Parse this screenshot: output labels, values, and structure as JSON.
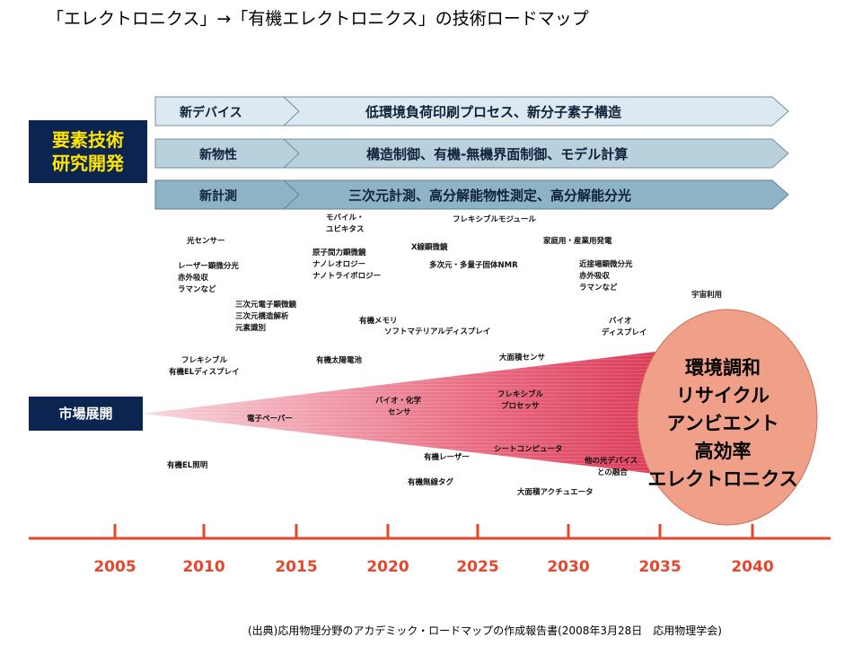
{
  "title": "「エレクトロニクス」→「有機エレクトロニクス」の技術ロードマップ",
  "source": "(出典)応用物理分野のアカデミック・ロードマップの作成報告書(2008年3月28日　応用物理学会)",
  "rnd_label": [
    "要素技術",
    "研究開発"
  ],
  "market_label": "市場展開",
  "arrows": [
    {
      "left": "新デバイス",
      "right": "低環境負荷印刷プロセス、新分子素子構造",
      "fill": "#dde9f0"
    },
    {
      "left": "新物性",
      "right": "構造制御、有機-無機界面制御、モデル計算",
      "fill": "#b9d0dd"
    },
    {
      "left": "新計測",
      "right": "三次元計測、高分解能物性測定、高分解能分光",
      "fill": "#8fb3c6"
    }
  ],
  "research_items": [
    {
      "lines": [
        "光センサー"
      ]
    },
    {
      "lines": [
        "レーザー顕微分光",
        "赤外吸収",
        "ラマンなど"
      ]
    },
    {
      "lines": [
        "三次元電子顕微鏡",
        "三次元構造解析",
        "元素識別"
      ]
    },
    {
      "lines": [
        "モバイル・",
        "ユビキタス"
      ]
    },
    {
      "lines": [
        "原子間力顕微鏡",
        "ナノレオロジー",
        "ナノトライボロジー"
      ]
    },
    {
      "lines": [
        "フレキシブルモジュール"
      ]
    },
    {
      "lines": [
        "X線顕微鏡"
      ]
    },
    {
      "lines": [
        "多次元・多量子固体NMR"
      ]
    },
    {
      "lines": [
        "家庭用・産業用発電"
      ]
    },
    {
      "lines": [
        "近接場顕微分光",
        "赤外吸収",
        "ラマンなど"
      ]
    },
    {
      "lines": [
        "宇宙利用"
      ]
    },
    {
      "lines": [
        "有機メモリ"
      ]
    },
    {
      "lines": [
        "ソフトマテリアルディスプレイ"
      ]
    },
    {
      "lines": [
        "バイオ",
        "ディスプレイ"
      ]
    }
  ],
  "market_items": [
    {
      "lines": [
        "フレキシブル",
        "有機ELディスプレイ"
      ]
    },
    {
      "lines": [
        "有機太陽電池"
      ]
    },
    {
      "lines": [
        "大面積センサ"
      ]
    },
    {
      "lines": [
        "電子ペーパー"
      ]
    },
    {
      "lines": [
        "バイオ・化学",
        "センサ"
      ]
    },
    {
      "lines": [
        "フレキシブル",
        "プロセッサ"
      ]
    },
    {
      "lines": [
        "有機EL照明"
      ]
    },
    {
      "lines": [
        "有機レーザー"
      ]
    },
    {
      "lines": [
        "シートコンピュータ"
      ]
    },
    {
      "lines": [
        "他の光デバイス",
        "との融合"
      ]
    },
    {
      "lines": [
        "有機無線タグ"
      ]
    },
    {
      "lines": [
        "大面積アクチュエータ"
      ]
    }
  ],
  "goal_lines": [
    "環境調和",
    "リサイクル",
    "アンビエント",
    "高効率",
    "エレクトロニクス"
  ],
  "timeline": {
    "years": [
      "2005",
      "2010",
      "2015",
      "2020",
      "2025",
      "2030",
      "2035",
      "2040"
    ],
    "color": "#e8452a"
  },
  "colors": {
    "navy": "#0c2550",
    "yellow": "#ffe400",
    "circle": "#f0a089",
    "wedge": "#e14a66"
  }
}
